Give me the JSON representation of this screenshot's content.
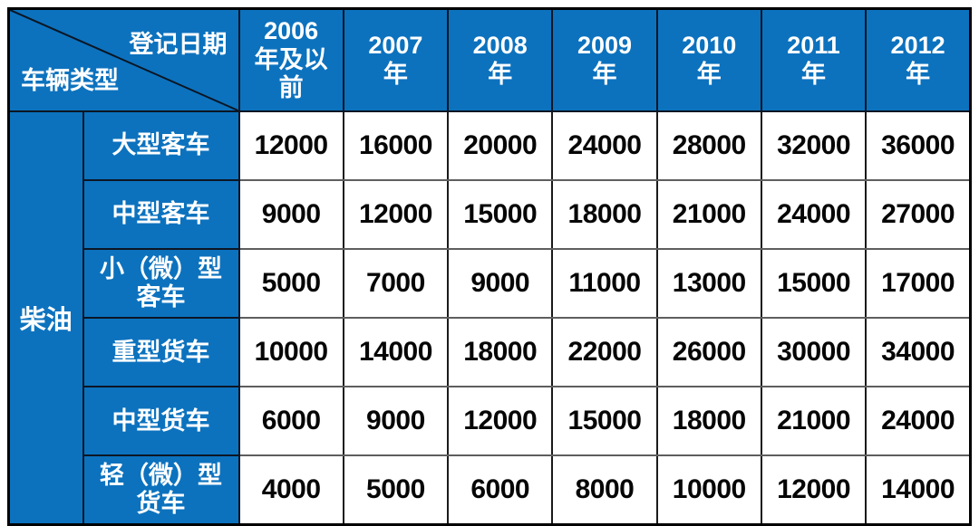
{
  "colors": {
    "header_blue": "#0c72be",
    "cell_border_dark": "#0c1624",
    "data_border": "#1a1a1a",
    "outer_border": "#000000",
    "header_text": "#ffffff",
    "data_text": "#060606",
    "data_bg": "#ffffff"
  },
  "chart_data": {
    "type": "table",
    "corner_top_right": "登记日期",
    "corner_bottom_left": "车辆类型",
    "column_headers": [
      "2006\n年及以\n前",
      "2007\n年",
      "2008\n年",
      "2009\n年",
      "2010\n年",
      "2011\n年",
      "2012\n年"
    ],
    "row_group": "柴油",
    "rows": [
      {
        "label": "大型客车",
        "values": [
          12000,
          16000,
          20000,
          24000,
          28000,
          32000,
          36000
        ]
      },
      {
        "label": "中型客车",
        "values": [
          9000,
          12000,
          15000,
          18000,
          21000,
          24000,
          27000
        ]
      },
      {
        "label": "小（微）型\n客车",
        "values": [
          5000,
          7000,
          9000,
          11000,
          13000,
          15000,
          17000
        ]
      },
      {
        "label": "重型货车",
        "values": [
          10000,
          14000,
          18000,
          22000,
          26000,
          30000,
          34000
        ]
      },
      {
        "label": "中型货车",
        "values": [
          6000,
          9000,
          12000,
          15000,
          18000,
          21000,
          24000
        ]
      },
      {
        "label": "轻（微）型\n货车",
        "values": [
          4000,
          5000,
          6000,
          8000,
          10000,
          12000,
          14000
        ]
      }
    ]
  }
}
